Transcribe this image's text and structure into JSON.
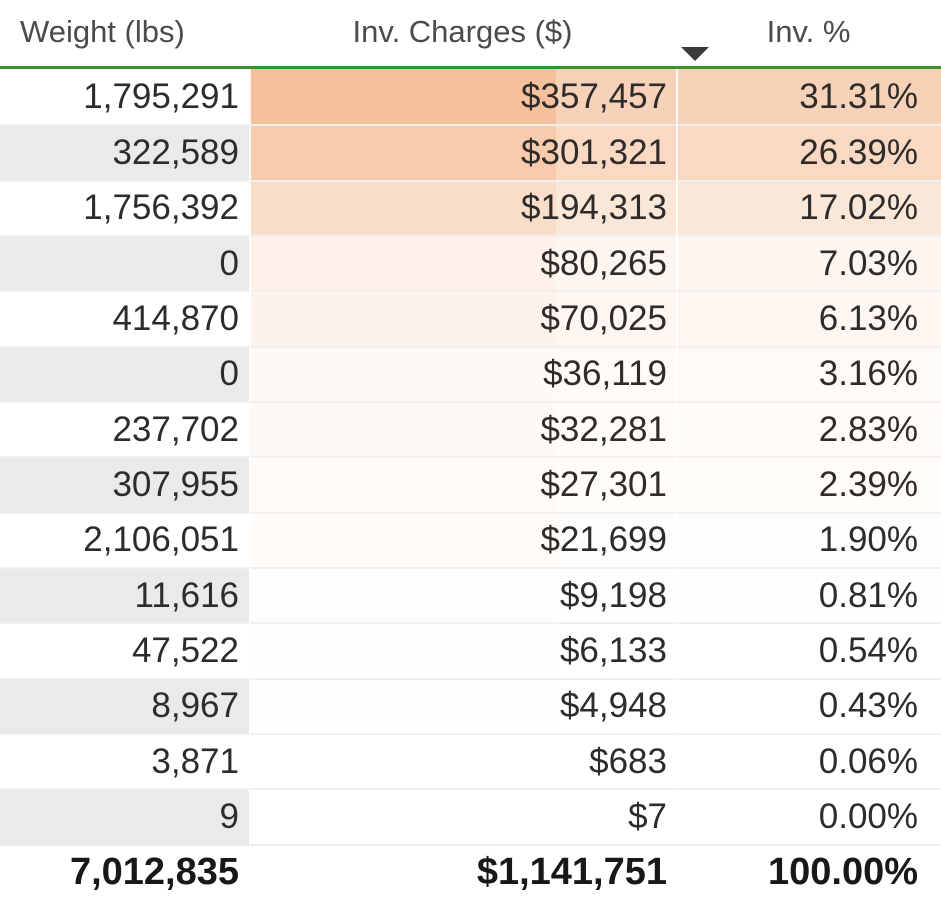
{
  "table": {
    "columns": [
      {
        "label": "Weight (lbs)"
      },
      {
        "label": "Inv. Charges ($)",
        "sorted": "descending"
      },
      {
        "label": "Inv. %"
      }
    ],
    "sort_icon": "triangle-down-icon",
    "rows": [
      {
        "weight": "1,795,291",
        "charges": "$357,457",
        "pct": "31.31%",
        "bg": "#f5c19c",
        "bg_light": "#f8d2b8",
        "pct_bg": "#f8d2b8"
      },
      {
        "weight": "322,589",
        "charges": "$301,321",
        "pct": "26.39%",
        "bg": "#f7cbac",
        "bg_light": "#f9d9c2",
        "pct_bg": "#f9d9c2"
      },
      {
        "weight": "1,756,392",
        "charges": "$194,313",
        "pct": "17.02%",
        "bg": "#faddc9",
        "bg_light": "#fbe7d8",
        "pct_bg": "#fbe7d8"
      },
      {
        "weight": "0",
        "charges": "$80,265",
        "pct": "7.03%",
        "bg": "#fdf1e9",
        "bg_light": "#fdf5ef",
        "pct_bg": "#fdf5ef"
      },
      {
        "weight": "414,870",
        "charges": "$70,025",
        "pct": "6.13%",
        "bg": "#fdf3ec",
        "bg_light": "#fef6f1",
        "pct_bg": "#fef6f1"
      },
      {
        "weight": "0",
        "charges": "$36,119",
        "pct": "3.16%",
        "bg": "#fef9f5",
        "bg_light": "#fefaf8",
        "pct_bg": "#fefaf8"
      },
      {
        "weight": "237,702",
        "charges": "$32,281",
        "pct": "2.83%",
        "bg": "#fef9f6",
        "bg_light": "#fefbf9",
        "pct_bg": "#fefbf9"
      },
      {
        "weight": "307,955",
        "charges": "$27,301",
        "pct": "2.39%",
        "bg": "#fefaf7",
        "bg_light": "#fffcfa",
        "pct_bg": "#fffcfa"
      },
      {
        "weight": "2,106,051",
        "charges": "$21,699",
        "pct": "1.90%",
        "bg": "#fefbf9",
        "bg_light": "#fffdfb",
        "pct_bg": "#fffdfb"
      },
      {
        "weight": "11,616",
        "charges": "$9,198",
        "pct": "0.81%",
        "bg": "#fffdfc",
        "bg_light": "#fffefe",
        "pct_bg": "#fffefe"
      },
      {
        "weight": "47,522",
        "charges": "$6,133",
        "pct": "0.54%",
        "bg": "#fffefd",
        "bg_light": "#fffffe",
        "pct_bg": "#fffffe"
      },
      {
        "weight": "8,967",
        "charges": "$4,948",
        "pct": "0.43%",
        "bg": "#fffefd",
        "bg_light": "#fffffe",
        "pct_bg": "#fffffe"
      },
      {
        "weight": "3,871",
        "charges": "$683",
        "pct": "0.06%",
        "bg": "#ffffff",
        "bg_light": "#ffffff",
        "pct_bg": "#ffffff"
      },
      {
        "weight": "9",
        "charges": "$7",
        "pct": "0.00%",
        "bg": "#ffffff",
        "bg_light": "#ffffff",
        "pct_bg": "#ffffff"
      }
    ],
    "total": {
      "weight": "7,012,835",
      "charges": "$1,141,751",
      "pct": "100.00%"
    }
  },
  "colors": {
    "header_underline_green": "#3a9132",
    "row_band_gray": "#eaeaea",
    "gridline": "#f2f0ee",
    "sort_icon_color": "#3b3a39",
    "cond_format_min": "#ffffff",
    "cond_format_max": "#f5c19c",
    "header_text": "#4c4b49",
    "body_text": "#2e2c2b"
  },
  "chart_data": {
    "type": "table",
    "columns": [
      "Weight (lbs)",
      "Inv. Charges ($)",
      "Inv. %"
    ],
    "rows": [
      [
        1795291,
        357457,
        31.31
      ],
      [
        322589,
        301321,
        26.39
      ],
      [
        1756392,
        194313,
        17.02
      ],
      [
        0,
        80265,
        7.03
      ],
      [
        414870,
        70025,
        6.13
      ],
      [
        0,
        36119,
        3.16
      ],
      [
        237702,
        32281,
        2.83
      ],
      [
        307955,
        27301,
        2.39
      ],
      [
        2106051,
        21699,
        1.9
      ],
      [
        11616,
        9198,
        0.81
      ],
      [
        47522,
        6133,
        0.54
      ],
      [
        8967,
        4948,
        0.43
      ],
      [
        3871,
        683,
        0.06
      ],
      [
        9,
        7,
        0.0
      ]
    ],
    "total": [
      7012835,
      1141751,
      100.0
    ],
    "sort": {
      "column": "Inv. Charges ($)",
      "direction": "descending"
    },
    "conditional_formatting": {
      "columns": [
        "Inv. Charges ($)",
        "Inv. %"
      ],
      "scale_min_color": "#ffffff",
      "scale_max_color": "#f5c19c"
    }
  }
}
